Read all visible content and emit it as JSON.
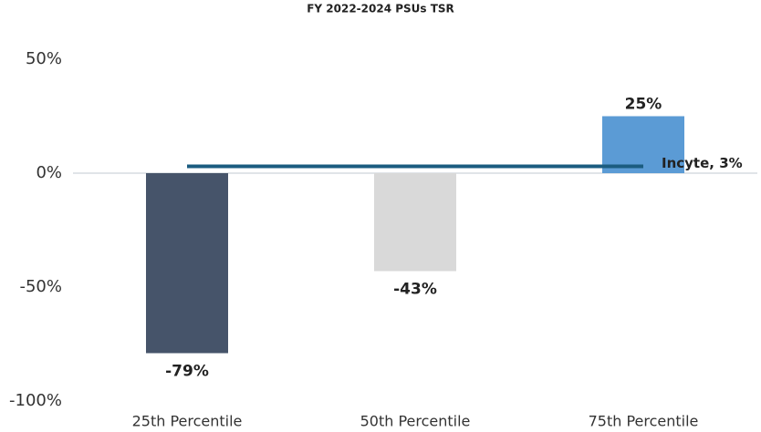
{
  "chart_data": {
    "type": "bar",
    "title": "FY 2022-2024 PSUs TSR",
    "categories": [
      "25th Percentile",
      "50th Percentile",
      "75th Percentile"
    ],
    "values": [
      -79,
      -43,
      25
    ],
    "value_labels": [
      "-79%",
      "-43%",
      "25%"
    ],
    "colors": [
      "#46546a",
      "#d9d9d9",
      "#5b9bd5"
    ],
    "ylim": [
      -100,
      50
    ],
    "yticks": [
      {
        "value": -100,
        "label": "-100%"
      },
      {
        "value": -50,
        "label": "-50%"
      },
      {
        "value": 0,
        "label": "0%"
      },
      {
        "value": 50,
        "label": "50%"
      }
    ],
    "grid": false,
    "reference_line": {
      "value": 3,
      "label": "Incyte, 3%",
      "color": "#1b5c80"
    }
  }
}
